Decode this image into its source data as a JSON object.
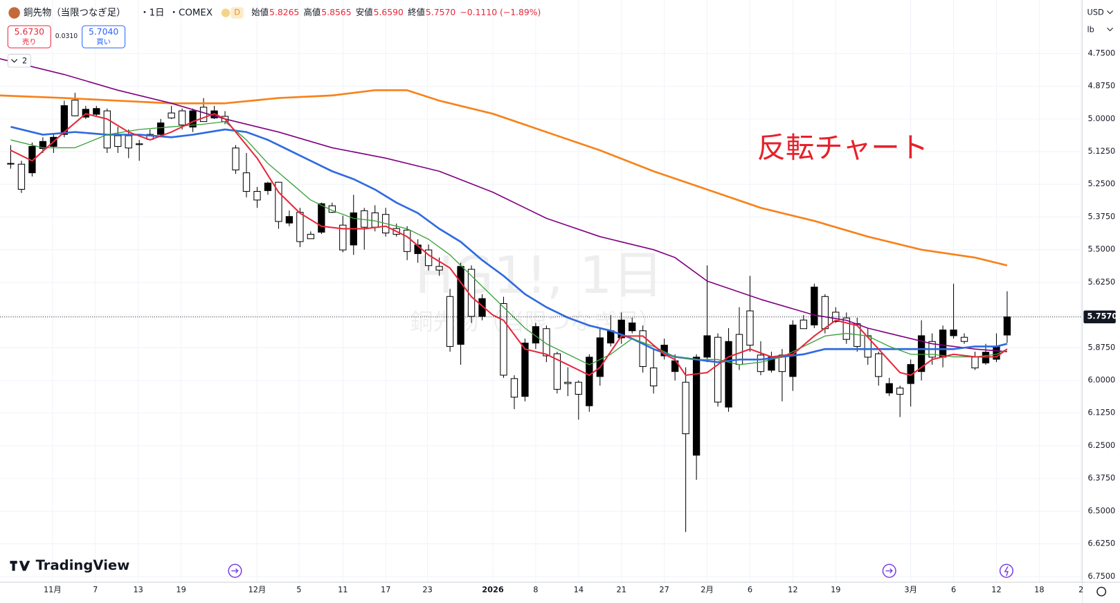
{
  "header": {
    "symbol": "銅先物（当限つなぎ足）",
    "interval": "・1日",
    "exchange": "・COMEX",
    "badge": "D",
    "ohlc": [
      {
        "label": "始値",
        "value": "5.8265"
      },
      {
        "label": "高値",
        "value": "5.8565"
      },
      {
        "label": "安値",
        "value": "5.6590"
      },
      {
        "label": "終値",
        "value": "5.7570"
      }
    ],
    "change": "−0.1110 (−1.89%)"
  },
  "sell": {
    "price": "5.6730",
    "label": "売り"
  },
  "spread": "0.0310",
  "buy": {
    "price": "5.7040",
    "label": "買い"
  },
  "indicator_count": "2",
  "currency": "USD",
  "unit": "lb",
  "brand": "TradingView",
  "price_label": "5.7570",
  "watermark": {
    "ticker": "HG1!, 1日",
    "name": "銅先物（当限つなぎ足）"
  },
  "chart_data": {
    "type": "candlestick",
    "annotation": "反転チャート",
    "inverted": true,
    "grid": true,
    "up_color": "#ffffff",
    "down_color": "#000000",
    "xlim": [
      -1,
      100
    ],
    "ylim": [
      4.545,
      6.772
    ],
    "xticks": [
      {
        "value": 3.9,
        "label": "11月"
      },
      {
        "value": 7.9,
        "label": "7"
      },
      {
        "value": 11.9,
        "label": "13"
      },
      {
        "value": 15.9,
        "label": "19"
      },
      {
        "value": 23,
        "label": "12月"
      },
      {
        "value": 26.9,
        "label": "5"
      },
      {
        "value": 31,
        "label": "11"
      },
      {
        "value": 35,
        "label": "17"
      },
      {
        "value": 38.9,
        "label": "23"
      },
      {
        "value": 45,
        "label": "2026"
      },
      {
        "value": 49,
        "label": "8"
      },
      {
        "value": 53,
        "label": "14"
      },
      {
        "value": 57,
        "label": "21"
      },
      {
        "value": 61,
        "label": "27"
      },
      {
        "value": 65,
        "label": "2月"
      },
      {
        "value": 69,
        "label": "6"
      },
      {
        "value": 73,
        "label": "12"
      },
      {
        "value": 77,
        "label": "19"
      },
      {
        "value": 84,
        "label": "3月"
      },
      {
        "value": 88,
        "label": "6"
      },
      {
        "value": 92,
        "label": "12"
      },
      {
        "value": 96,
        "label": "18"
      },
      {
        "value": 99.9,
        "label": "2"
      }
    ],
    "yticks": [
      {
        "value": 4.75,
        "label": "4.7500"
      },
      {
        "value": 4.875,
        "label": "4.8750"
      },
      {
        "value": 5.0,
        "label": "5.0000"
      },
      {
        "value": 5.125,
        "label": "5.1250"
      },
      {
        "value": 5.25,
        "label": "5.2500"
      },
      {
        "value": 5.375,
        "label": "5.3750"
      },
      {
        "value": 5.5,
        "label": "5.5000"
      },
      {
        "value": 5.625,
        "label": "5.6250"
      },
      {
        "value": 5.75,
        "label": "5.7500"
      },
      {
        "value": 5.875,
        "label": "5.8750"
      },
      {
        "value": 6.0,
        "label": "6.0000"
      },
      {
        "value": 6.125,
        "label": "6.1250"
      },
      {
        "value": 6.25,
        "label": "6.2500"
      },
      {
        "value": 6.375,
        "label": "6.3750"
      },
      {
        "value": 6.5,
        "label": "6.5000"
      },
      {
        "value": 6.625,
        "label": "6.6250"
      },
      {
        "value": 6.75,
        "label": "6.7500"
      }
    ],
    "x": [
      0,
      1,
      2,
      3,
      4,
      5,
      6,
      7,
      8,
      9,
      10,
      11,
      12,
      13,
      14,
      15,
      16,
      17,
      18,
      19,
      20,
      21,
      22,
      23,
      24,
      25,
      26,
      27,
      28,
      29,
      30,
      31,
      32,
      33,
      34,
      35,
      36,
      37,
      38,
      39,
      40,
      41,
      42,
      43,
      44,
      46,
      47,
      48,
      49,
      50,
      51,
      52,
      53,
      54,
      55,
      56,
      57,
      58,
      59,
      60,
      61,
      62,
      63,
      64,
      65,
      66,
      67,
      68,
      69,
      70,
      71,
      72,
      73,
      74,
      75,
      76,
      77,
      78,
      79,
      80,
      81,
      82,
      83,
      84,
      85,
      86,
      87,
      88,
      89,
      90,
      91,
      92,
      93
    ],
    "ohlc": [
      [
        5.17,
        5.19,
        5.1,
        5.17
      ],
      [
        5.173,
        5.283,
        5.16,
        5.269
      ],
      [
        5.206,
        5.22,
        5.09,
        5.105
      ],
      [
        5.113,
        5.13,
        5.07,
        5.086
      ],
      [
        5.105,
        5.13,
        5.06,
        5.07
      ],
      [
        5.059,
        5.07,
        4.93,
        4.949
      ],
      [
        4.928,
        4.99,
        4.9,
        4.988
      ],
      [
        4.993,
        5.0,
        4.95,
        4.963
      ],
      [
        4.982,
        4.99,
        4.95,
        4.96
      ],
      [
        4.969,
        5.13,
        4.96,
        5.111
      ],
      [
        5.064,
        5.13,
        5.03,
        5.105
      ],
      [
        5.064,
        5.15,
        5.04,
        5.111
      ],
      [
        5.095,
        5.16,
        5.08,
        5.098
      ],
      [
        5.059,
        5.08,
        5.04,
        5.078
      ],
      [
        5.059,
        5.07,
        5.0,
        5.015
      ],
      [
        4.977,
        5.0,
        4.95,
        4.996
      ],
      [
        4.969,
        5.04,
        4.96,
        5.023
      ],
      [
        5.031,
        5.05,
        4.96,
        4.969
      ],
      [
        4.955,
        5.01,
        4.92,
        5.01
      ],
      [
        4.996,
        5.0,
        4.95,
        4.969
      ],
      [
        4.99,
        5.02,
        4.97,
        5.01
      ],
      [
        5.111,
        5.21,
        5.1,
        5.195
      ],
      [
        5.206,
        5.3,
        5.13,
        5.277
      ],
      [
        5.277,
        5.34,
        5.26,
        5.31
      ],
      [
        5.274,
        5.29,
        5.24,
        5.245
      ],
      [
        5.242,
        5.42,
        5.24,
        5.392
      ],
      [
        5.398,
        5.41,
        5.35,
        5.373
      ],
      [
        5.357,
        5.49,
        5.34,
        5.469
      ],
      [
        5.441,
        5.45,
        5.43,
        5.458
      ],
      [
        5.433,
        5.44,
        5.32,
        5.324
      ],
      [
        5.332,
        5.36,
        5.32,
        5.357
      ],
      [
        5.406,
        5.51,
        5.37,
        5.501
      ],
      [
        5.482,
        5.52,
        5.29,
        5.359
      ],
      [
        5.351,
        5.5,
        5.34,
        5.414
      ],
      [
        5.359,
        5.43,
        5.33,
        5.414
      ],
      [
        5.365,
        5.45,
        5.34,
        5.436
      ],
      [
        5.419,
        5.45,
        5.4,
        5.441
      ],
      [
        5.425,
        5.54,
        5.41,
        5.507
      ],
      [
        5.515,
        5.55,
        5.46,
        5.482
      ],
      [
        5.501,
        5.58,
        5.48,
        5.561
      ],
      [
        5.564,
        5.6,
        5.53,
        5.578
      ],
      [
        5.679,
        5.89,
        5.65,
        5.87
      ],
      [
        5.862,
        5.94,
        5.55,
        5.564
      ],
      [
        5.575,
        5.78,
        5.56,
        5.755
      ],
      [
        5.755,
        5.77,
        5.67,
        5.687
      ],
      [
        5.706,
        5.99,
        5.68,
        5.98
      ],
      [
        5.993,
        6.11,
        5.98,
        6.064
      ],
      [
        6.061,
        6.08,
        5.84,
        5.857
      ],
      [
        5.857,
        5.88,
        5.78,
        5.794
      ],
      [
        5.802,
        5.93,
        5.79,
        5.906
      ],
      [
        5.898,
        6.05,
        5.89,
        6.034
      ],
      [
        6.007,
        6.06,
        5.95,
        6.012
      ],
      [
        6.007,
        6.15,
        6.0,
        6.053
      ],
      [
        6.097,
        6.12,
        5.9,
        5.911
      ],
      [
        5.985,
        6.02,
        5.8,
        5.837
      ],
      [
        5.857,
        5.87,
        5.75,
        5.81
      ],
      [
        5.837,
        5.86,
        5.74,
        5.769
      ],
      [
        5.81,
        5.82,
        5.76,
        5.78
      ],
      [
        5.81,
        5.97,
        5.79,
        5.947
      ],
      [
        5.952,
        6.05,
        5.88,
        6.021
      ],
      [
        5.906,
        5.92,
        5.84,
        5.865
      ],
      [
        5.966,
        6.0,
        5.9,
        5.925
      ],
      [
        6.007,
        6.58,
        5.95,
        6.204
      ],
      [
        6.286,
        6.38,
        5.9,
        5.911
      ],
      [
        5.911,
        5.93,
        5.56,
        5.829
      ],
      [
        5.835,
        6.1,
        5.82,
        6.083
      ],
      [
        6.102,
        6.12,
        5.8,
        5.851
      ],
      [
        5.824,
        5.96,
        5.72,
        5.939
      ],
      [
        5.734,
        5.89,
        5.6,
        5.865
      ],
      [
        5.903,
        5.98,
        5.85,
        5.966
      ],
      [
        5.961,
        5.97,
        5.89,
        5.911
      ],
      [
        5.903,
        6.08,
        5.88,
        5.966
      ],
      [
        5.985,
        6.04,
        5.77,
        5.788
      ],
      [
        5.769,
        5.8,
        5.75,
        5.802
      ],
      [
        5.788,
        5.8,
        5.63,
        5.643
      ],
      [
        5.679,
        5.82,
        5.67,
        5.802
      ],
      [
        5.739,
        5.78,
        5.72,
        5.775
      ],
      [
        5.761,
        5.86,
        5.74,
        5.843
      ],
      [
        5.783,
        5.89,
        5.76,
        5.87
      ],
      [
        5.829,
        5.94,
        5.8,
        5.911
      ],
      [
        5.898,
        6.02,
        5.89,
        5.985
      ],
      [
        6.048,
        6.06,
        5.99,
        6.012
      ],
      [
        6.029,
        6.14,
        6.02,
        6.053
      ],
      [
        6.012,
        6.1,
        5.92,
        5.939
      ],
      [
        5.966,
        6.0,
        5.77,
        5.829
      ],
      [
        5.851,
        5.94,
        5.82,
        5.911
      ],
      [
        5.911,
        5.95,
        5.79,
        5.807
      ],
      [
        5.829,
        5.84,
        5.63,
        5.807
      ],
      [
        5.835,
        5.86,
        5.82,
        5.851
      ],
      [
        5.911,
        5.96,
        5.89,
        5.952
      ],
      [
        5.933,
        5.94,
        5.86,
        5.892
      ],
      [
        5.919,
        5.93,
        5.82,
        5.87
      ],
      [
        5.8265,
        5.8565,
        5.659,
        5.757
      ]
    ],
    "series": [
      {
        "color": "#f7821b",
        "width": 2.6,
        "x": [
          -1,
          5,
          10,
          15,
          20,
          25,
          30,
          34,
          37,
          40,
          45,
          50,
          55,
          60,
          65,
          70,
          75,
          80,
          85,
          90,
          93
        ],
        "values": [
          4.91,
          4.92,
          4.93,
          4.94,
          4.94,
          4.92,
          4.91,
          4.89,
          4.89,
          4.93,
          4.98,
          5.05,
          5.12,
          5.2,
          5.27,
          5.34,
          5.39,
          5.45,
          5.5,
          5.53,
          5.56
        ]
      },
      {
        "color": "#800080",
        "width": 1.6,
        "x": [
          -1,
          5,
          10,
          15,
          20,
          25,
          30,
          35,
          40,
          45,
          50,
          55,
          60,
          62,
          65,
          70,
          75,
          78,
          80,
          83,
          86,
          90,
          93
        ],
        "values": [
          4.77,
          4.83,
          4.89,
          4.94,
          5.0,
          5.05,
          5.11,
          5.15,
          5.2,
          5.28,
          5.38,
          5.45,
          5.5,
          5.53,
          5.62,
          5.69,
          5.75,
          5.77,
          5.8,
          5.83,
          5.86,
          5.88,
          5.89
        ]
      },
      {
        "color": "#2f6be0",
        "width": 2.6,
        "x": [
          0,
          3,
          6,
          9,
          12,
          15,
          17,
          20,
          22,
          24,
          26,
          28,
          30,
          32,
          34,
          36,
          38,
          40,
          42,
          44,
          46,
          48,
          50,
          52,
          54,
          56,
          58,
          60,
          62,
          64,
          66,
          68,
          70,
          72,
          74,
          76,
          78,
          80,
          82,
          84,
          86,
          88,
          90,
          92,
          93
        ],
        "values": [
          5.03,
          5.06,
          5.05,
          5.06,
          5.06,
          5.07,
          5.06,
          5.04,
          5.05,
          5.08,
          5.12,
          5.16,
          5.2,
          5.23,
          5.27,
          5.32,
          5.36,
          5.42,
          5.47,
          5.54,
          5.6,
          5.67,
          5.72,
          5.76,
          5.79,
          5.81,
          5.84,
          5.88,
          5.91,
          5.92,
          5.93,
          5.92,
          5.92,
          5.91,
          5.9,
          5.88,
          5.88,
          5.88,
          5.88,
          5.88,
          5.88,
          5.88,
          5.87,
          5.87,
          5.86
        ]
      },
      {
        "color": "#3aa03a",
        "width": 1.3,
        "x": [
          0,
          3,
          6,
          9,
          12,
          15,
          18,
          20,
          22,
          24,
          26,
          28,
          30,
          32,
          34,
          37,
          39,
          41,
          43,
          46,
          48,
          50,
          52,
          54,
          56,
          58,
          60,
          62,
          64,
          66,
          68,
          70,
          72,
          74,
          76,
          78,
          80,
          82,
          84,
          86,
          88,
          90,
          92,
          93
        ],
        "values": [
          5.08,
          5.11,
          5.11,
          5.06,
          5.04,
          5.03,
          5.02,
          5.01,
          5.08,
          5.17,
          5.24,
          5.31,
          5.35,
          5.38,
          5.39,
          5.42,
          5.46,
          5.52,
          5.6,
          5.72,
          5.8,
          5.86,
          5.9,
          5.94,
          5.9,
          5.84,
          5.87,
          5.91,
          5.92,
          5.92,
          5.94,
          5.93,
          5.91,
          5.87,
          5.83,
          5.82,
          5.83,
          5.87,
          5.9,
          5.9,
          5.91,
          5.91,
          5.9,
          5.88
        ]
      },
      {
        "color": "#e8273a",
        "width": 2.0,
        "x": [
          0,
          2,
          5,
          7,
          9,
          11,
          13,
          15,
          17,
          19,
          20,
          21,
          23,
          25,
          27,
          29,
          31,
          33,
          35,
          37,
          39,
          41,
          43,
          45,
          46,
          48,
          50,
          52,
          54,
          55,
          57,
          59,
          61,
          62,
          63,
          65,
          67,
          69,
          71,
          73,
          75,
          77,
          79,
          81,
          83,
          84,
          86,
          88,
          90,
          92,
          93
        ],
        "values": [
          5.12,
          5.16,
          5.05,
          4.98,
          5.0,
          5.05,
          5.08,
          5.05,
          5.01,
          4.98,
          5.0,
          5.05,
          5.15,
          5.28,
          5.36,
          5.41,
          5.42,
          5.42,
          5.41,
          5.45,
          5.52,
          5.57,
          5.68,
          5.75,
          5.77,
          5.88,
          5.9,
          5.94,
          5.98,
          5.95,
          5.83,
          5.83,
          5.9,
          5.92,
          5.98,
          5.97,
          5.91,
          5.88,
          5.91,
          5.9,
          5.83,
          5.77,
          5.79,
          5.88,
          5.97,
          5.98,
          5.92,
          5.9,
          5.91,
          5.91,
          5.88
        ]
      }
    ]
  }
}
